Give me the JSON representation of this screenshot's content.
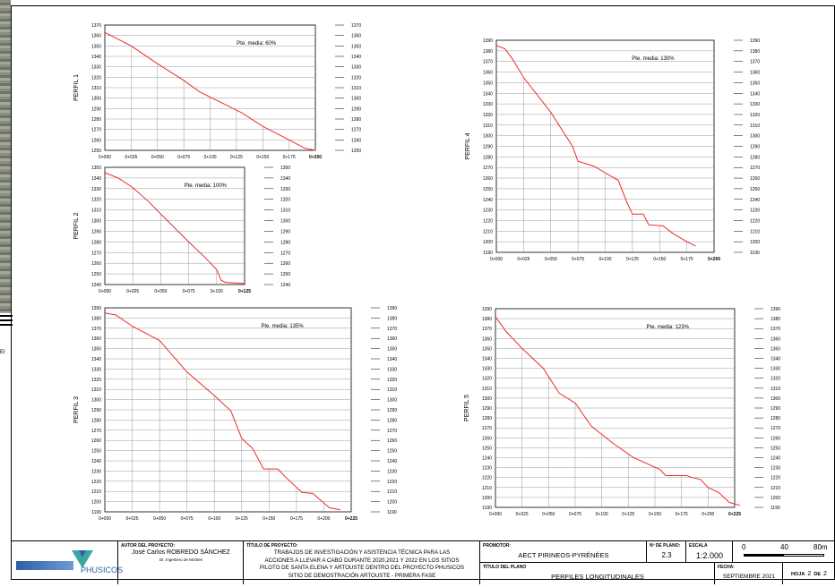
{
  "page": {
    "side_label": "EI"
  },
  "colors": {
    "profile_line": "#ee2a2a",
    "grid": "#9a9a9a",
    "frame": "#000000"
  },
  "charts": {
    "p1": {
      "label": "PERFIL 1",
      "slope_text": "Pte. media:  60%",
      "ylim": [
        1250,
        1370
      ],
      "ystep": 10,
      "xticks": [
        "0+000",
        "0+025",
        "0+050",
        "0+075",
        "0+100",
        "0+125",
        "0+150",
        "0+175",
        "0+200"
      ],
      "xmax": 200,
      "profile": [
        [
          0,
          1363
        ],
        [
          25,
          1350
        ],
        [
          50,
          1333
        ],
        [
          75,
          1317
        ],
        [
          90,
          1306
        ],
        [
          110,
          1296
        ],
        [
          130,
          1286
        ],
        [
          150,
          1273
        ],
        [
          175,
          1260
        ],
        [
          190,
          1252
        ],
        [
          200,
          1250
        ]
      ]
    },
    "p2": {
      "label": "PERFIL 2",
      "slope_text": "Pte. media:  100%",
      "ylim": [
        1240,
        1350
      ],
      "ystep": 10,
      "xticks": [
        "0+000",
        "0+025",
        "0+050",
        "0+075",
        "0+100",
        "0+125"
      ],
      "xmax": 125,
      "profile": [
        [
          0,
          1345
        ],
        [
          12,
          1340
        ],
        [
          25,
          1331
        ],
        [
          40,
          1317
        ],
        [
          55,
          1301
        ],
        [
          75,
          1280
        ],
        [
          90,
          1265
        ],
        [
          100,
          1254
        ],
        [
          104,
          1244
        ],
        [
          108,
          1242
        ],
        [
          125,
          1241
        ]
      ]
    },
    "p3": {
      "label": "PERFIL 3",
      "slope_text": "Pte. media:  135%",
      "ylim": [
        1190,
        1390
      ],
      "ystep": 10,
      "xticks": [
        "0+000",
        "0+025",
        "0+050",
        "0+075",
        "0+100",
        "0+125",
        "0+150",
        "0+175",
        "0+200",
        "0+225"
      ],
      "xmax": 225,
      "profile": [
        [
          0,
          1385
        ],
        [
          10,
          1383
        ],
        [
          25,
          1372
        ],
        [
          50,
          1358
        ],
        [
          75,
          1327
        ],
        [
          100,
          1304
        ],
        [
          115,
          1289
        ],
        [
          125,
          1262
        ],
        [
          135,
          1252
        ],
        [
          145,
          1232
        ],
        [
          158,
          1232
        ],
        [
          165,
          1224
        ],
        [
          180,
          1209
        ],
        [
          190,
          1208
        ],
        [
          205,
          1194
        ],
        [
          215,
          1192
        ]
      ]
    },
    "p4": {
      "label": "PERFIL 4",
      "slope_text": "Pte. media:  130%",
      "ylim": [
        1190,
        1390
      ],
      "ystep": 10,
      "xticks": [
        "0+000",
        "0+025",
        "0+050",
        "0+075",
        "0+100",
        "0+125",
        "0+150",
        "0+175",
        "0+200"
      ],
      "xmax": 200,
      "profile": [
        [
          0,
          1385
        ],
        [
          8,
          1382
        ],
        [
          15,
          1372
        ],
        [
          25,
          1355
        ],
        [
          50,
          1322
        ],
        [
          70,
          1290
        ],
        [
          75,
          1276
        ],
        [
          90,
          1271
        ],
        [
          105,
          1262
        ],
        [
          112,
          1258
        ],
        [
          120,
          1237
        ],
        [
          125,
          1226
        ],
        [
          135,
          1226
        ],
        [
          140,
          1216
        ],
        [
          153,
          1215
        ],
        [
          162,
          1208
        ],
        [
          175,
          1200
        ],
        [
          183,
          1196
        ]
      ]
    },
    "p5": {
      "label": "PERFIL 5",
      "slope_text": "Pte. media:  123%",
      "ylim": [
        1190,
        1390
      ],
      "ystep": 10,
      "xticks": [
        "0+000",
        "0+025",
        "0+050",
        "0+075",
        "0+100",
        "0+125",
        "0+150",
        "0+175",
        "0+200",
        "0+225"
      ],
      "xmax": 225,
      "profile": [
        [
          0,
          1382
        ],
        [
          10,
          1367
        ],
        [
          25,
          1350
        ],
        [
          45,
          1330
        ],
        [
          60,
          1305
        ],
        [
          75,
          1295
        ],
        [
          90,
          1272
        ],
        [
          110,
          1255
        ],
        [
          130,
          1240
        ],
        [
          155,
          1228
        ],
        [
          160,
          1222
        ],
        [
          180,
          1222
        ],
        [
          185,
          1220
        ],
        [
          193,
          1218
        ],
        [
          200,
          1210
        ],
        [
          210,
          1205
        ],
        [
          220,
          1195
        ],
        [
          230,
          1192
        ]
      ]
    }
  },
  "titleblock": {
    "logo_text": "PHUSICOS",
    "author_label": "AUTOR DEL PROYECTO:",
    "author_name": "José Carlos ROBREDO SÁNCHEZ",
    "author_role": "Dr. Ingeniero de Montes",
    "project_label": "TÍTULO DE PROYECTO:",
    "project_line1": "TRABAJOS DE INVESTIGACIÓN Y ASISTENCIA TÉCNICA PARA LAS",
    "project_line2": "ACCIONES A LLEVAR A CABO DURANTE 2020,2021 Y 2022 EN LOS SITIOS",
    "project_line3": "PILOTO DE SANTA ELENA Y ARTOUSTE DENTRO DEL PROYECTO PHUSICOS",
    "project_line4": "SITIO DE DEMOSTRACIÓN ARTOUSTE   -   PRIMERA FASE",
    "promoter_label": "PROMOTOR:",
    "promoter_value": "AECT PIRINEOS-PYRÉNÉES",
    "plan_title_label": "TÍTULO DEL PLANO",
    "plan_title_value": "PERFILES LONGITUDINALES",
    "plan_no_label": "Nº DE PLANO:",
    "plan_no_value": "2.3",
    "scale_label": "ESCALA",
    "scale_value": "1:2.000",
    "scale_ticks": [
      "0",
      "40",
      "80m"
    ],
    "date_label": "FECHA:",
    "date_value": "SEPTIEMBRE 2021",
    "sheet_prefix": "HOJA",
    "sheet_no": "2",
    "sheet_sep": "DE",
    "sheet_total": "2"
  }
}
